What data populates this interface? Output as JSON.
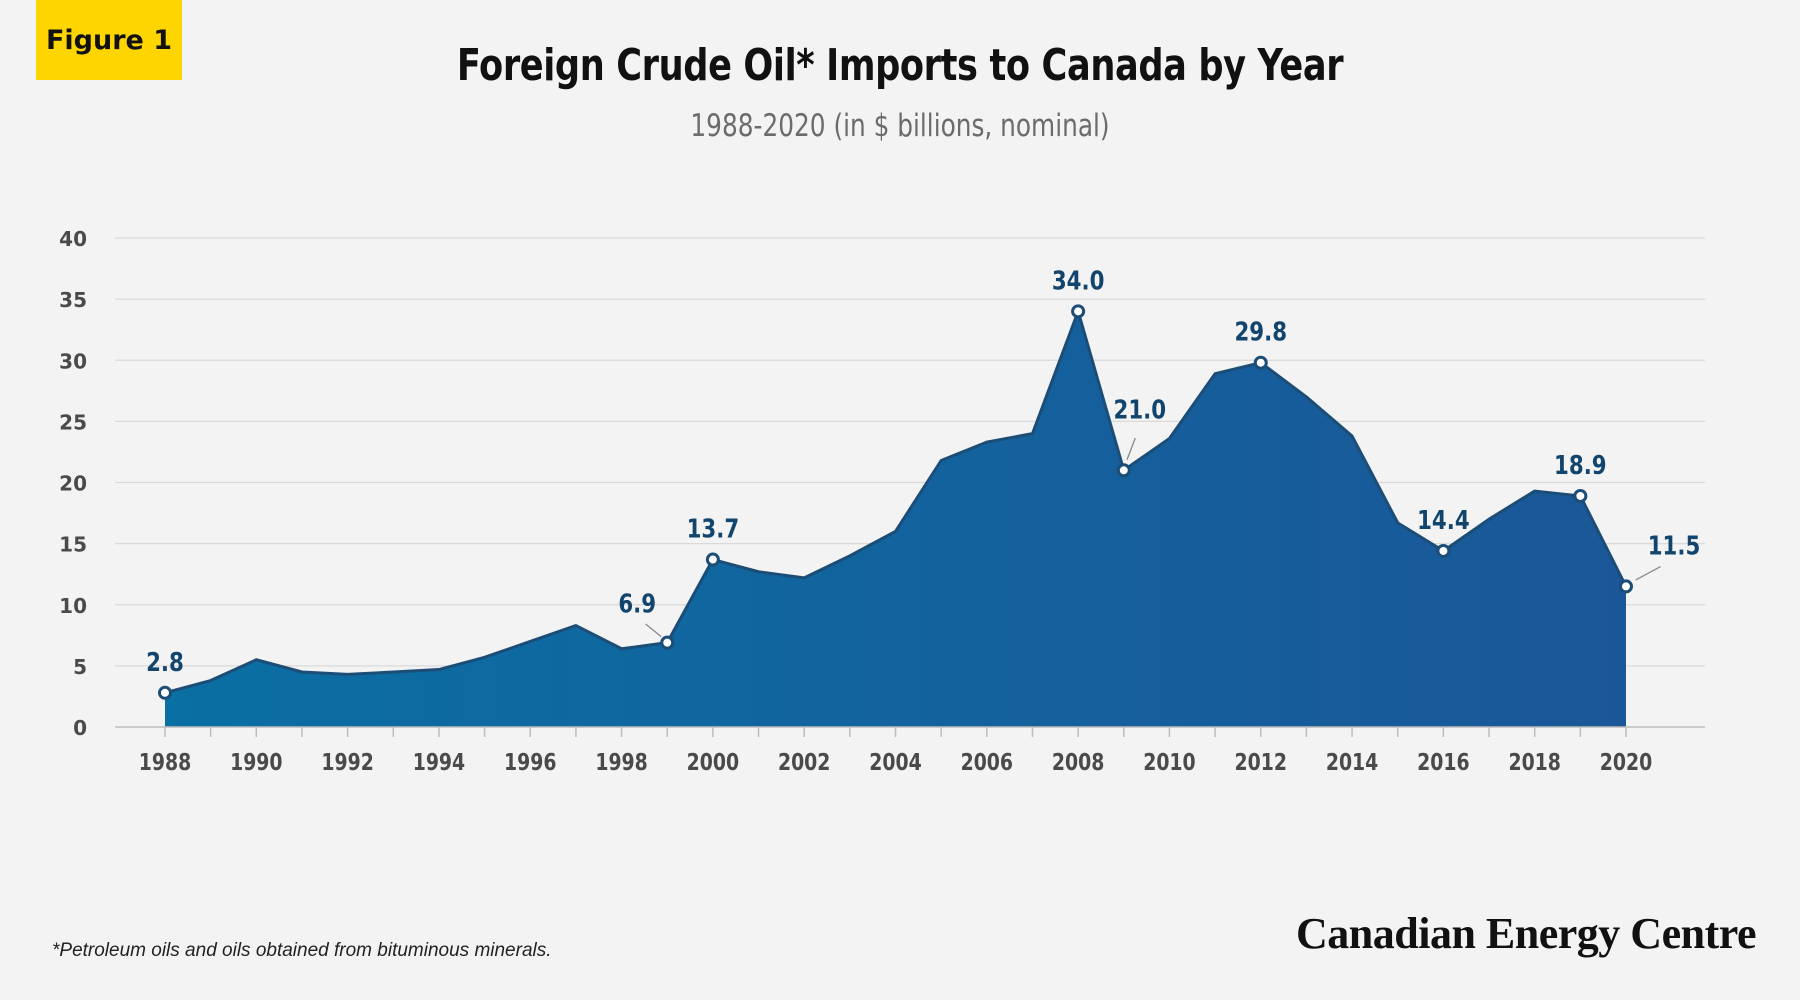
{
  "header": {
    "badge": "Figure 1",
    "title": "Foreign Crude Oil* Imports to Canada by Year",
    "subtitle": "1988-2020 (in $ billions, nominal)"
  },
  "footer": {
    "footnote": "*Petroleum oils and oils obtained from bituminous minerals.",
    "brand": "Canadian Energy Centre"
  },
  "colors": {
    "background": "#f3f3f3",
    "area_light": "#0a6fa3",
    "area_dark": "#1b5798",
    "line": "#1b4d77",
    "label": "#12456e",
    "badge": "#ffd500"
  },
  "chart_data": {
    "type": "area",
    "title": "Foreign Crude Oil* Imports to Canada by Year",
    "subtitle": "1988-2020 (in $ billions, nominal)",
    "xlabel": "",
    "ylabel": "",
    "x": [
      1988,
      1989,
      1990,
      1991,
      1992,
      1993,
      1994,
      1995,
      1996,
      1997,
      1998,
      1999,
      2000,
      2001,
      2002,
      2003,
      2004,
      2005,
      2006,
      2007,
      2008,
      2009,
      2010,
      2011,
      2012,
      2013,
      2014,
      2015,
      2016,
      2017,
      2018,
      2019,
      2020
    ],
    "y": [
      2.8,
      3.8,
      5.5,
      4.5,
      4.3,
      4.5,
      4.7,
      5.7,
      7.0,
      8.3,
      6.4,
      6.9,
      13.7,
      12.7,
      12.2,
      14.0,
      16.0,
      21.8,
      23.3,
      24.0,
      34.0,
      21.0,
      23.6,
      28.9,
      29.8,
      27.0,
      23.8,
      16.7,
      14.4,
      17.0,
      19.3,
      18.9,
      11.5
    ],
    "x_ticks": [
      "1988",
      "1990",
      "1992",
      "1994",
      "1996",
      "1998",
      "2000",
      "2002",
      "2004",
      "2006",
      "2008",
      "2010",
      "2012",
      "2014",
      "2016",
      "2018",
      "2020"
    ],
    "y_ticks": [
      "0",
      "5",
      "10",
      "15",
      "20",
      "25",
      "30",
      "35",
      "40"
    ],
    "ylim": [
      0,
      40
    ],
    "xlim": [
      1988,
      2020
    ],
    "grid": true,
    "annotations": [
      {
        "year": 1988,
        "label": "2.8"
      },
      {
        "year": 1999,
        "label": "6.9"
      },
      {
        "year": 2000,
        "label": "13.7"
      },
      {
        "year": 2008,
        "label": "34.0"
      },
      {
        "year": 2009,
        "label": "21.0"
      },
      {
        "year": 2012,
        "label": "29.8"
      },
      {
        "year": 2016,
        "label": "14.4"
      },
      {
        "year": 2019,
        "label": "18.9"
      },
      {
        "year": 2020,
        "label": "11.5"
      }
    ]
  }
}
